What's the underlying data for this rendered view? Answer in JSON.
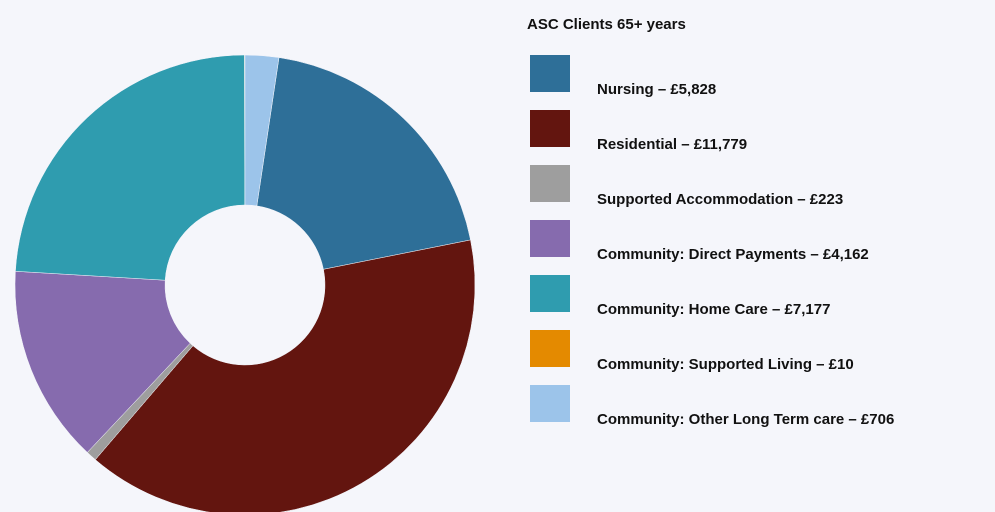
{
  "chart_data": {
    "type": "donut",
    "title": "ASC Clients 65+ years",
    "categories": [
      "Nursing – £5,828",
      "Residential – £11,779",
      "Supported Accommodation – £223",
      "Community: Direct Payments – £4,162",
      "Community: Home Care – £7,177",
      "Community: Supported Living – £10",
      "Community: Other Long Term care – £706"
    ],
    "values": [
      5828,
      11779,
      223,
      4162,
      7177,
      10,
      706
    ],
    "colors": [
      "#2e6f98",
      "#63150f",
      "#9e9e9e",
      "#866bae",
      "#2f9caf",
      "#e48a00",
      "#9cc4ea"
    ]
  }
}
